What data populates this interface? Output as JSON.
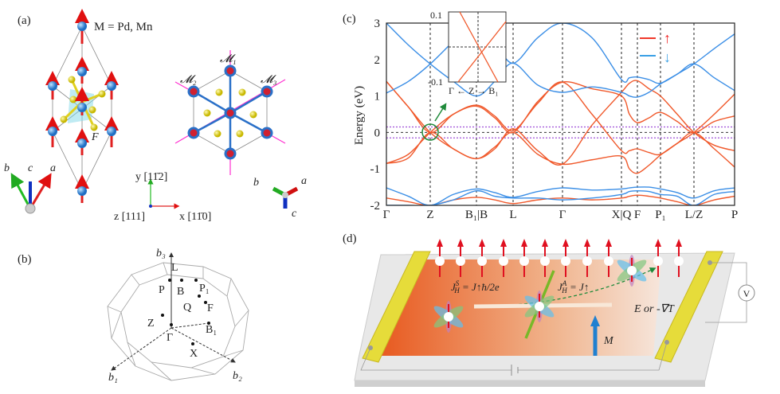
{
  "panel_a": {
    "label": "(a)",
    "formula": "M = Pd, Mn",
    "f_label": "F",
    "mirror_labels": [
      "𝓜₁",
      "𝓜₂",
      "𝓜₃"
    ],
    "lattice_axes": {
      "a": "a",
      "b": "b",
      "c": "c"
    },
    "cart_axes": {
      "y": "y [11̄2]",
      "z": "z [111]",
      "x": "x [11̄0]"
    }
  },
  "panel_b": {
    "label": "(b)",
    "points": [
      "b₃",
      "L",
      "P",
      "B",
      "P₁",
      "Q",
      "F",
      "Z",
      "Γ",
      "B₁",
      "X",
      "b₁",
      "b₂"
    ]
  },
  "panel_c": {
    "label": "(c)",
    "legend": {
      "up": "↑",
      "down": "↓"
    },
    "colors": {
      "spin_up": "#f0582a",
      "spin_down": "#3a8ee6",
      "fermi_window": "#a050d8",
      "highlight": "#1f8a3a"
    },
    "inset": {
      "yticks": [
        "0.1",
        "-0.1"
      ],
      "xlabel": "Γ ← Z → B₁"
    }
  },
  "chart_data": {
    "type": "line",
    "ylabel": "Energy (eV)",
    "ylim": [
      -2,
      3
    ],
    "yticks": [
      "3",
      "2",
      "1",
      "0",
      "-1",
      "-2"
    ],
    "k_ticks": [
      "Γ",
      "Z",
      "B₁|B",
      "L",
      "Γ",
      "X|Q",
      "F",
      "P₁",
      "L/Z",
      "P"
    ],
    "fermi_window_eV": [
      -0.15,
      0.15
    ],
    "series": [
      {
        "spin": "up",
        "values": [
          1.4,
          0.7,
          0,
          0.5,
          0.75,
          0.45,
          0.05,
          0.8,
          1.38,
          0.5,
          -0.5,
          -0.5,
          -0.45,
          -0.55,
          -0.6,
          -0.3,
          0,
          0.5,
          1.05
        ]
      },
      {
        "spin": "up",
        "values": [
          -0.85,
          -0.7,
          0,
          -0.45,
          -0.72,
          -0.4,
          0,
          -0.6,
          -0.87,
          -0.75,
          -0.65,
          -1.0,
          -1.12,
          -0.9,
          -0.62,
          -0.3,
          0,
          -0.45,
          -0.95
        ]
      },
      {
        "spin": "up",
        "values": [
          -0.85,
          -0.6,
          0,
          0.5,
          0.72,
          0.4,
          0,
          0.85,
          1.38,
          1.2,
          1.0,
          0.5,
          0.27,
          0.4,
          0.55,
          0.3,
          0,
          0.3,
          0.45
        ]
      },
      {
        "spin": "up",
        "values": [
          1.4,
          0.7,
          0,
          -0.45,
          -0.72,
          -0.45,
          0.1,
          -0.5,
          -0.87,
          0.2,
          1.1,
          1.35,
          1.42,
          1.2,
          1.0,
          0.5,
          0,
          -0.35,
          -0.5
        ]
      },
      {
        "spin": "up",
        "values": [
          -1.8,
          -1.9,
          -2,
          -1.85,
          -1.78,
          -1.85,
          -1.95,
          -1.85,
          -1.8,
          -1.85,
          -1.8,
          -1.75,
          -1.72,
          -1.75,
          -1.8,
          -1.9,
          -2,
          -1.85,
          -1.75
        ]
      },
      {
        "spin": "down",
        "values": [
          1.08,
          1.4,
          1.88,
          2.5,
          3.1,
          2.5,
          1.9,
          2.6,
          3.0,
          2.6,
          1.45,
          1.5,
          1.52,
          1.45,
          1.35,
          1.6,
          1.88,
          1.5,
          1.15
        ]
      },
      {
        "spin": "down",
        "values": [
          3.0,
          2.4,
          1.88,
          1.4,
          1.0,
          1.4,
          1.9,
          1.3,
          1.1,
          1.25,
          1.1,
          1.0,
          0.97,
          1.1,
          1.33,
          1.6,
          1.88,
          2.3,
          2.7
        ]
      },
      {
        "spin": "down",
        "values": [
          -1.52,
          -1.75,
          -2,
          -1.7,
          -1.55,
          -1.65,
          -1.78,
          -1.62,
          -1.52,
          -1.58,
          -1.55,
          -1.52,
          -1.5,
          -1.5,
          -1.55,
          -1.65,
          -1.8,
          -1.6,
          -1.52
        ]
      },
      {
        "spin": "down",
        "values": [
          -2,
          -2,
          -2,
          -1.85,
          -1.6,
          -1.75,
          -1.8,
          -1.8,
          -1.85,
          -1.8,
          -1.7,
          -1.62,
          -1.6,
          -1.62,
          -1.7,
          -1.75,
          -2,
          -1.7,
          -1.62
        ]
      }
    ]
  },
  "panel_d": {
    "label": "(d)",
    "spin_hall": {
      "J": "J",
      "sub": "H",
      "sup": "S",
      "rhs": " = J↑ħ/2e"
    },
    "anomalous_hall": {
      "J": "J",
      "sub": "H",
      "sup": "A",
      "rhs": " = J↑"
    },
    "drive": "E or -∇T",
    "magnetization": "M",
    "voltmeter": "V"
  }
}
